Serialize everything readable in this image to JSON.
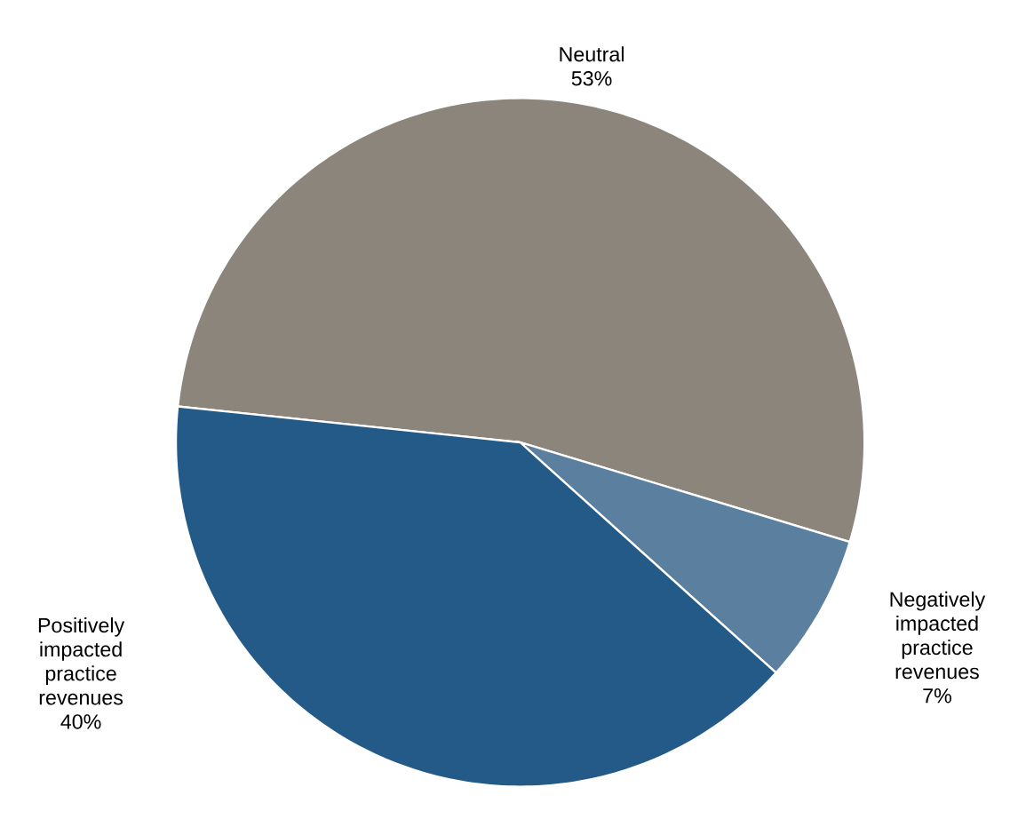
{
  "chart_data": {
    "type": "pie",
    "categories": [
      "Neutral",
      "Negatively impacted practice revenues",
      "Positively impacted practice revenues"
    ],
    "values": [
      53,
      7,
      40
    ],
    "value_labels": [
      "53%",
      "7%",
      "40%"
    ],
    "colors": [
      "#8c857b",
      "#5b7f9e",
      "#245a87"
    ]
  }
}
